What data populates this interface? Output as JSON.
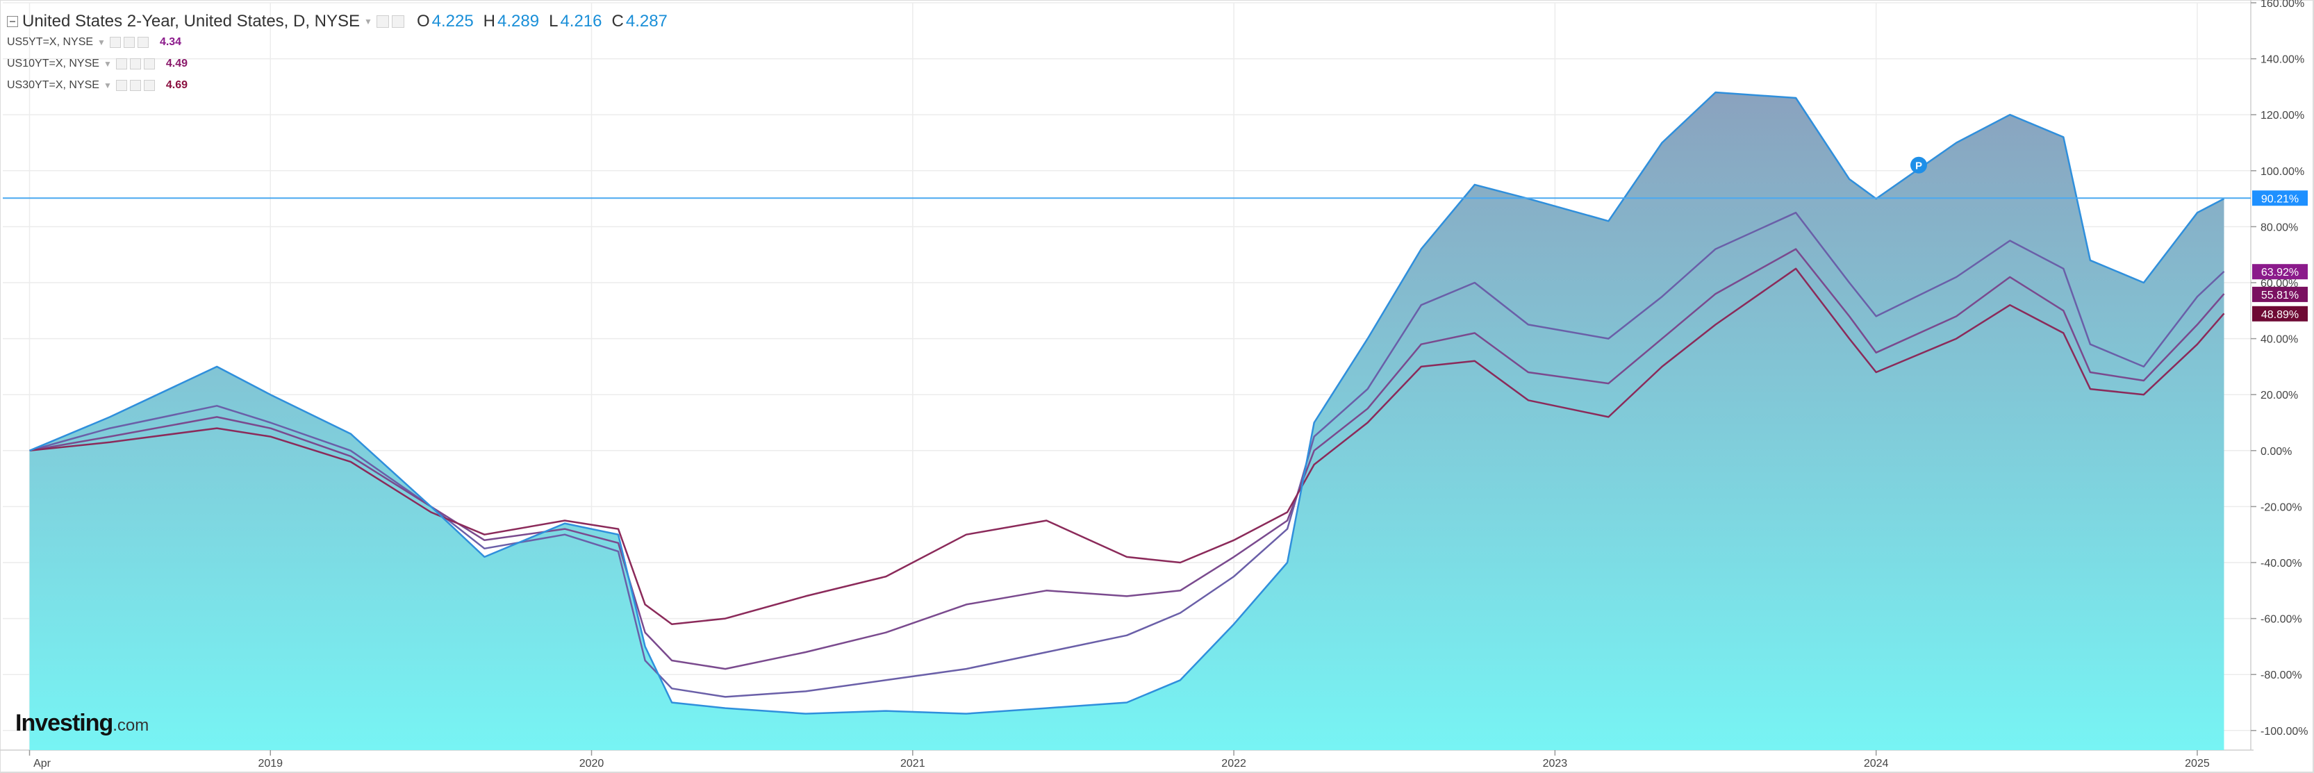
{
  "header": {
    "title": "United States 2-Year, United States, D, NYSE",
    "ohlc": [
      {
        "k": "O",
        "v": "4.225"
      },
      {
        "k": "H",
        "v": "4.289"
      },
      {
        "k": "L",
        "v": "4.216"
      },
      {
        "k": "C",
        "v": "4.287"
      }
    ]
  },
  "legend": [
    {
      "name": "US5YT=X, NYSE",
      "value": "4.34",
      "color": "#8b1a8b"
    },
    {
      "name": "US10YT=X, NYSE",
      "value": "4.49",
      "color": "#8b1a6b"
    },
    {
      "name": "US30YT=X, NYSE",
      "value": "4.69",
      "color": "#8b1040"
    }
  ],
  "brand": {
    "name": "Investing",
    "suffix": ".com"
  },
  "colors": {
    "main_line": "#2f8fdc",
    "area_top": "#8aa2be",
    "area_bottom": "#77f4f4",
    "grid": "#ececec",
    "price_tag_main": "#1e90ff"
  },
  "chart_data": {
    "type": "area",
    "x_ticks": [
      "Apr",
      "2019",
      "2020",
      "2021",
      "2022",
      "2023",
      "2024",
      "2025"
    ],
    "y_ticks": [
      "160.00%",
      "140.00%",
      "120.00%",
      "100.00%",
      "80.00%",
      "60.00%",
      "40.00%",
      "20.00%",
      "0.00%",
      "-20.00%",
      "-40.00%",
      "-60.00%",
      "-80.00%",
      "-100.00%"
    ],
    "ylim": [
      -107,
      160
    ],
    "y_unit": "%",
    "grid": true,
    "x": [
      "2018-04",
      "2018-07",
      "2018-11",
      "2019-01",
      "2019-04",
      "2019-07",
      "2019-09",
      "2019-12",
      "2020-02",
      "2020-03",
      "2020-04",
      "2020-06",
      "2020-09",
      "2020-12",
      "2021-03",
      "2021-06",
      "2021-09",
      "2021-11",
      "2022-01",
      "2022-03",
      "2022-04",
      "2022-06",
      "2022-08",
      "2022-10",
      "2022-12",
      "2023-03",
      "2023-05",
      "2023-07",
      "2023-10",
      "2023-12",
      "2024-01",
      "2024-04",
      "2024-06",
      "2024-08",
      "2024-09",
      "2024-11",
      "2025-01",
      "2025-02"
    ],
    "series": [
      {
        "name": "United States 2-Year",
        "last_label": "90.21%",
        "values": [
          0,
          12,
          30,
          20,
          6,
          -20,
          -38,
          -26,
          -30,
          -70,
          -90,
          -92,
          -94,
          -93,
          -94,
          -92,
          -90,
          -82,
          -62,
          -40,
          10,
          40,
          72,
          95,
          90,
          82,
          110,
          128,
          126,
          97,
          90,
          110,
          120,
          112,
          68,
          60,
          85,
          90
        ]
      },
      {
        "name": "US5YT=X, NYSE",
        "last_label": "63.92%",
        "values": [
          0,
          8,
          16,
          10,
          0,
          -20,
          -35,
          -30,
          -36,
          -75,
          -85,
          -88,
          -86,
          -82,
          -78,
          -72,
          -66,
          -58,
          -45,
          -28,
          5,
          22,
          52,
          60,
          45,
          40,
          55,
          72,
          85,
          60,
          48,
          62,
          75,
          65,
          38,
          30,
          55,
          64
        ]
      },
      {
        "name": "US10YT=X, NYSE",
        "last_label": "55.81%",
        "values": [
          0,
          5,
          12,
          8,
          -2,
          -20,
          -32,
          -28,
          -33,
          -65,
          -75,
          -78,
          -72,
          -65,
          -55,
          -50,
          -52,
          -50,
          -38,
          -25,
          0,
          15,
          38,
          42,
          28,
          24,
          40,
          56,
          72,
          48,
          35,
          48,
          62,
          50,
          28,
          25,
          45,
          56
        ]
      },
      {
        "name": "US30YT=X, NYSE",
        "last_label": "48.89%",
        "values": [
          0,
          3,
          8,
          5,
          -4,
          -22,
          -30,
          -25,
          -28,
          -55,
          -62,
          -60,
          -52,
          -45,
          -30,
          -25,
          -38,
          -40,
          -32,
          -22,
          -5,
          10,
          30,
          32,
          18,
          12,
          30,
          45,
          65,
          40,
          28,
          40,
          52,
          42,
          22,
          20,
          38,
          49
        ]
      }
    ],
    "last_values": {
      "main": 90.21,
      "us5": 63.92,
      "us10": 55.81,
      "us30": 48.89
    }
  }
}
